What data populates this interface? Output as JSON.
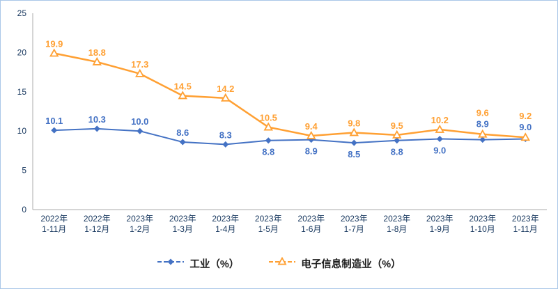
{
  "chart_data": {
    "type": "line",
    "title": "",
    "xlabel": "",
    "ylabel": "",
    "ylim": [
      0,
      25
    ],
    "yticks": [
      0,
      5,
      10,
      15,
      20,
      25
    ],
    "grid": false,
    "legend_position": "bottom",
    "axis_color": "#17375E",
    "frame_border_color": "#A9C7E8",
    "categories": [
      [
        "2022年",
        "1-11月"
      ],
      [
        "2022年",
        "1-12月"
      ],
      [
        "2023年",
        "1-2月"
      ],
      [
        "2023年",
        "1-3月"
      ],
      [
        "2023年",
        "1-4月"
      ],
      [
        "2023年",
        "1-5月"
      ],
      [
        "2023年",
        "1-6月"
      ],
      [
        "2023年",
        "1-7月"
      ],
      [
        "2023年",
        "1-8月"
      ],
      [
        "2023年",
        "1-9月"
      ],
      [
        "2023年",
        "1-10月"
      ],
      [
        "2023年",
        "1-11月"
      ]
    ],
    "series": [
      {
        "name": "工业（%）",
        "color": "#4472C4",
        "marker": "diamond",
        "values": [
          10.1,
          10.3,
          10.0,
          8.6,
          8.3,
          8.8,
          8.9,
          8.5,
          8.8,
          9.0,
          8.9,
          9.0
        ],
        "label_positions": [
          "above",
          "above",
          "above",
          "above",
          "above",
          "below",
          "below",
          "below",
          "below",
          "below",
          "stack",
          "stack"
        ]
      },
      {
        "name": "电子信息制造业（%）",
        "color": "#FFA033",
        "marker": "triangle-open",
        "values": [
          19.9,
          18.8,
          17.3,
          14.5,
          14.2,
          10.5,
          9.4,
          9.8,
          9.5,
          10.2,
          9.6,
          9.2
        ],
        "label_positions": [
          "above",
          "above",
          "above",
          "above",
          "above",
          "above",
          "above",
          "above",
          "above",
          "above",
          "stack-top",
          "stack-top"
        ]
      }
    ]
  }
}
